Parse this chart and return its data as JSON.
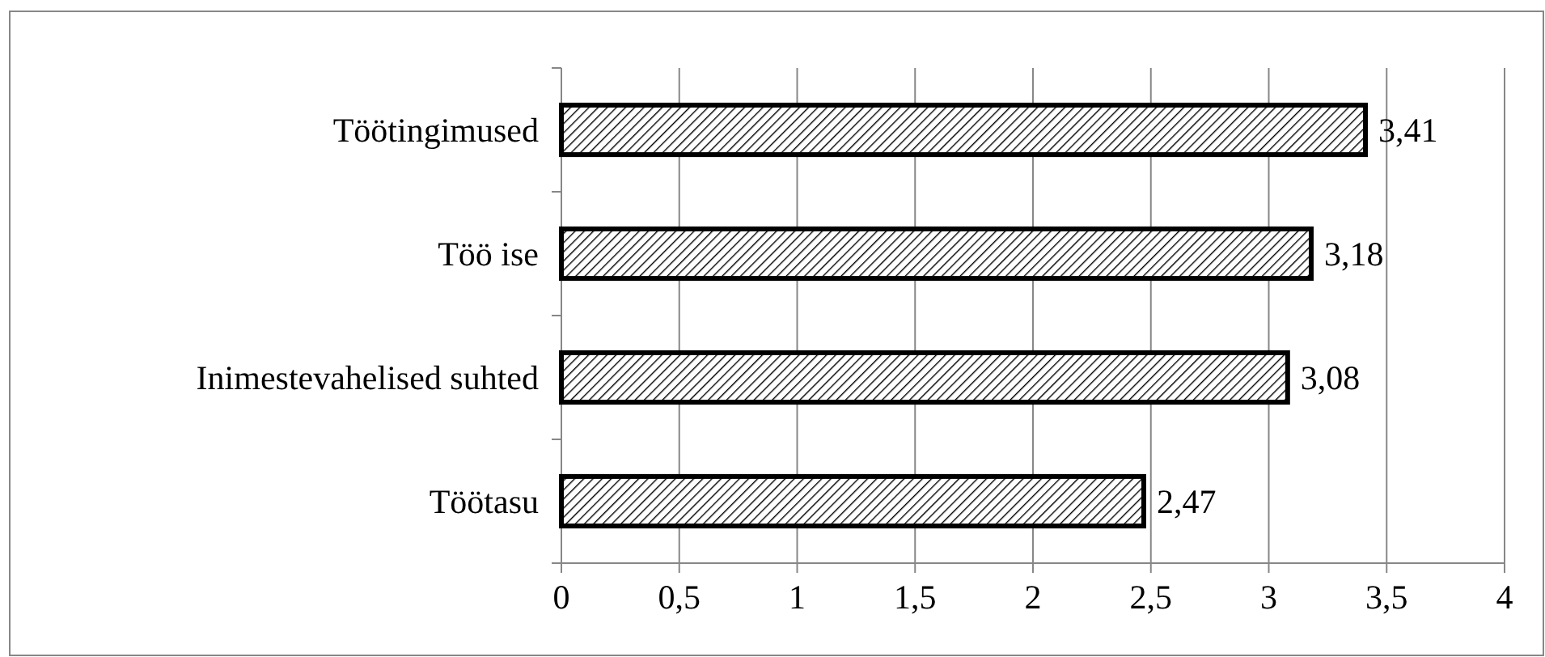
{
  "chart_data": {
    "type": "bar",
    "orientation": "horizontal",
    "categories": [
      "Töötingimused",
      "Töö ise",
      "Inimestevahelised suhted",
      "Töötasu"
    ],
    "values": [
      3.41,
      3.18,
      3.08,
      2.47
    ],
    "value_labels": [
      "3,41",
      "3,18",
      "3,08",
      "2,47"
    ],
    "color": "#000000",
    "xlim": [
      0,
      4
    ],
    "xticks": [
      0,
      {
        "value": 0.5,
        "label": "0,5"
      },
      1,
      {
        "value": 1.5,
        "label": "1,5"
      },
      2,
      {
        "value": 2.5,
        "label": "2,5"
      },
      3,
      {
        "value": 3.5,
        "label": "3,5"
      },
      4
    ],
    "grid": "x"
  }
}
